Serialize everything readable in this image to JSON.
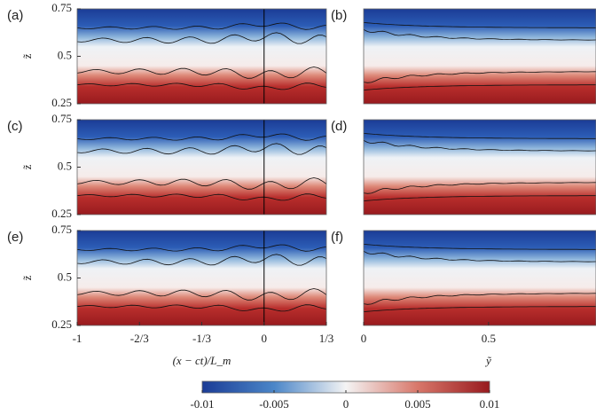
{
  "chart_data": [
    {
      "type": "field",
      "label": "(a)",
      "ylabel": "z̃",
      "xlim": [
        -1,
        0.3333
      ],
      "ylim": [
        0.25,
        0.75
      ],
      "yticks": [
        0.25,
        0.5,
        0.75
      ]
    },
    {
      "type": "field",
      "label": "(b)",
      "xlim": [
        0,
        0.93
      ],
      "ylim": [
        0.25,
        0.75
      ]
    },
    {
      "type": "field",
      "label": "(c)",
      "ylabel": "z̃",
      "xlim": [
        -1,
        0.3333
      ],
      "ylim": [
        0.25,
        0.75
      ],
      "yticks": [
        0.25,
        0.5,
        0.75
      ]
    },
    {
      "type": "field",
      "label": "(d)",
      "xlim": [
        0,
        0.93
      ],
      "ylim": [
        0.25,
        0.75
      ]
    },
    {
      "type": "field",
      "label": "(e)",
      "ylabel": "z̃",
      "xlabel": "(x − ct)/L_m",
      "xlim": [
        -1,
        0.3333
      ],
      "ylim": [
        0.25,
        0.75
      ],
      "yticks": [
        0.25,
        0.5,
        0.75
      ],
      "xticks": [
        -1,
        {
          "value": -0.6667,
          "label": "-2/3"
        },
        {
          "value": -0.3333,
          "label": "-1/3"
        },
        0,
        {
          "value": 0.3333,
          "label": "1/3"
        }
      ]
    },
    {
      "type": "field",
      "label": "(f)",
      "xlabel": "ỹ",
      "xlim": [
        0,
        0.93
      ],
      "ylim": [
        0.25,
        0.75
      ],
      "xticks": [
        0,
        0.5
      ]
    },
    {
      "type": "colorbar",
      "xlim": [
        -0.01,
        0.01
      ],
      "xticks": [
        -0.01,
        -0.005,
        0,
        0.005,
        0.01
      ]
    }
  ]
}
